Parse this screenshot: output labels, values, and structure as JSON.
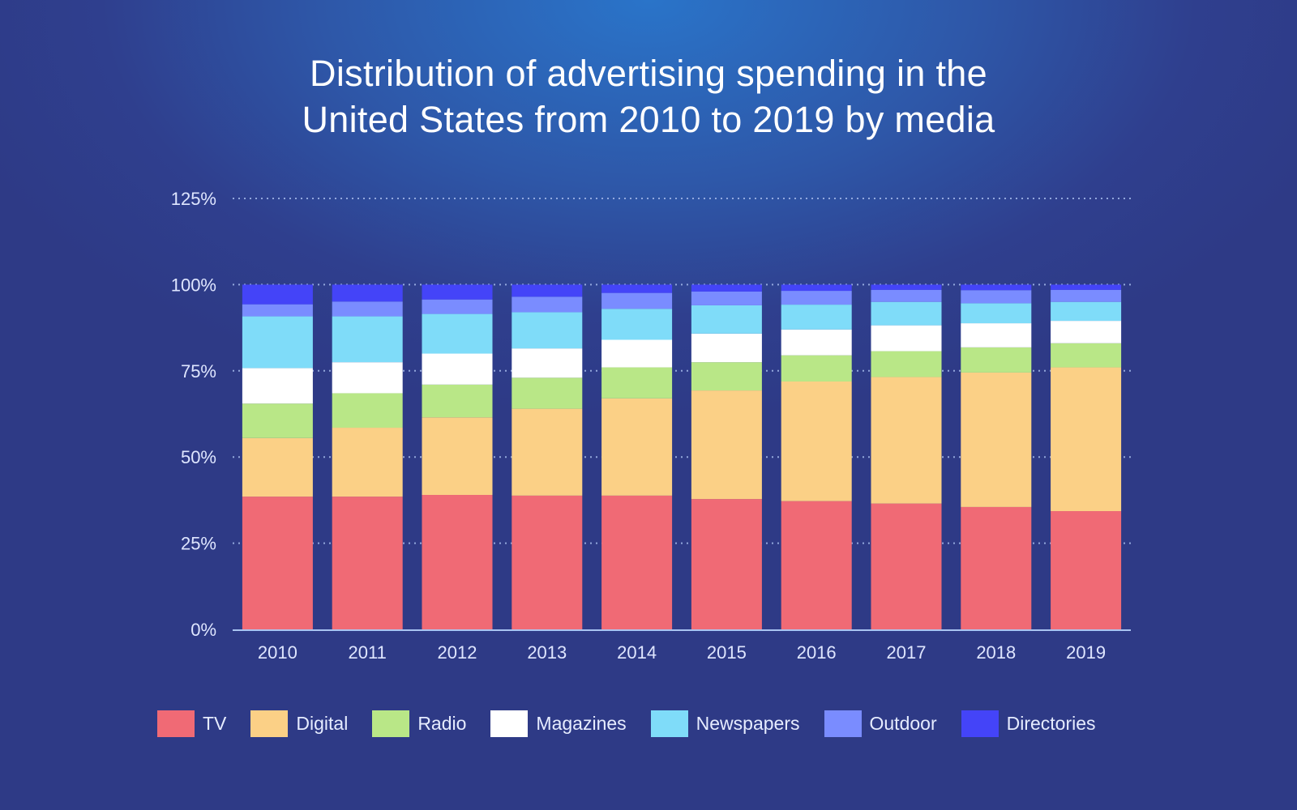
{
  "title_line1": "Distribution of advertising spending in the",
  "title_line2": "United States from 2010 to 2019 by media",
  "chart_data": {
    "type": "bar",
    "stacked": true,
    "title": "Distribution of advertising spending in the United States from 2010 to 2019 by media",
    "xlabel": "",
    "ylabel": "",
    "ylim": [
      0,
      125
    ],
    "yticks": [
      0,
      25,
      50,
      75,
      100,
      125
    ],
    "ytick_labels": [
      "0%",
      "25%",
      "50%",
      "75%",
      "100%",
      "125%"
    ],
    "grid": true,
    "legend_position": "bottom",
    "categories": [
      "2010",
      "2011",
      "2012",
      "2013",
      "2014",
      "2015",
      "2016",
      "2017",
      "2018",
      "2019"
    ],
    "series": [
      {
        "name": "TV",
        "color": "#f06a75",
        "values": [
          38.5,
          38.5,
          39.0,
          38.8,
          38.8,
          37.8,
          37.2,
          36.5,
          35.5,
          34.3
        ]
      },
      {
        "name": "Digital",
        "color": "#fbd086",
        "values": [
          17.0,
          20.0,
          22.5,
          25.2,
          28.2,
          31.5,
          34.7,
          36.7,
          39.0,
          41.7
        ]
      },
      {
        "name": "Radio",
        "color": "#b9e787",
        "values": [
          10.0,
          10.0,
          9.5,
          9.0,
          9.0,
          8.2,
          7.6,
          7.5,
          7.3,
          7.0
        ]
      },
      {
        "name": "Magazines",
        "color": "#ffffff",
        "values": [
          10.3,
          9.0,
          9.0,
          8.5,
          8.0,
          8.3,
          7.5,
          7.5,
          7.0,
          6.5
        ]
      },
      {
        "name": "Newspapers",
        "color": "#7fdcf9",
        "values": [
          15.0,
          13.3,
          11.5,
          10.5,
          9.0,
          8.2,
          7.2,
          6.8,
          5.8,
          5.5
        ]
      },
      {
        "name": "Outdoor",
        "color": "#7a8cff",
        "values": [
          3.5,
          4.3,
          4.2,
          4.5,
          4.6,
          4.0,
          4.0,
          3.5,
          3.8,
          3.5
        ]
      },
      {
        "name": "Directories",
        "color": "#4444f8",
        "values": [
          5.7,
          4.9,
          4.3,
          3.5,
          2.4,
          2.0,
          1.8,
          1.5,
          1.6,
          1.5
        ]
      }
    ]
  }
}
